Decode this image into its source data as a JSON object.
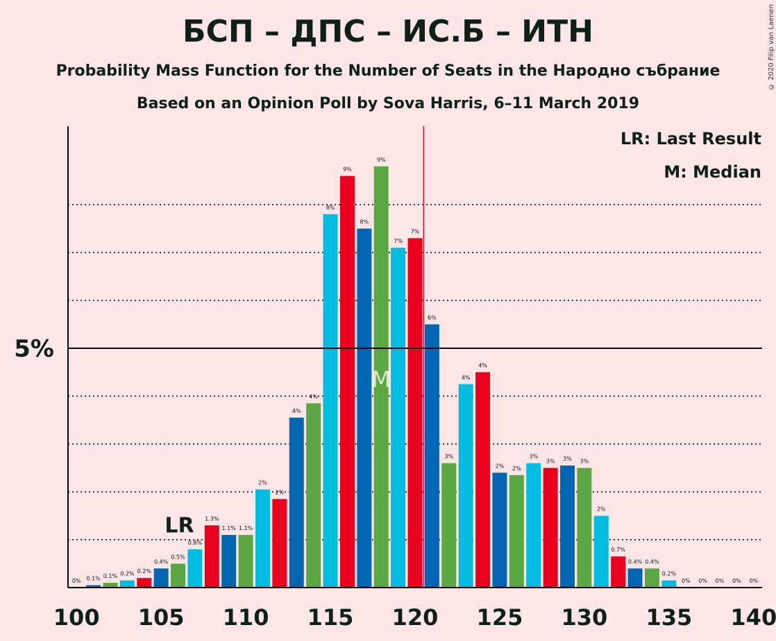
{
  "title": "БСП – ДПС – ИС.Б – ИТН",
  "subtitle": "Probability Mass Function for the Number of Seats in the Народно събрание",
  "source": "Based on an Opinion Poll by Sova Harris, 6–11 March 2019",
  "copyright": "© 2020 Filip van Laenen",
  "legend": {
    "last_result": "LR: Last Result",
    "median": "M: Median"
  },
  "colors": {
    "background": "#FDE6E6",
    "blue": "#0066B2",
    "green": "#5BA744",
    "cyan": "#00BCE0",
    "red": "#E8001E"
  },
  "chart_data": {
    "type": "bar",
    "x": [
      100,
      101,
      102,
      103,
      104,
      105,
      106,
      107,
      108,
      109,
      110,
      111,
      112,
      113,
      114,
      115,
      116,
      117,
      118,
      119,
      120,
      121,
      122,
      123,
      124,
      125,
      126,
      127,
      128,
      129,
      130,
      131,
      132,
      133,
      134,
      135,
      136,
      137,
      138,
      139,
      140
    ],
    "values": [
      0,
      0.05,
      0.1,
      0.15,
      0.2,
      0.4,
      0.5,
      0.8,
      1.3,
      1.1,
      1.1,
      2.05,
      1.85,
      3.55,
      3.85,
      7.8,
      8.6,
      7.5,
      8.8,
      7.1,
      7.3,
      5.5,
      2.6,
      4.25,
      4.5,
      2.4,
      2.35,
      2.6,
      2.5,
      2.55,
      2.5,
      1.5,
      0.65,
      0.4,
      0.4,
      0.15,
      0,
      0,
      0,
      0,
      0
    ],
    "labels": [
      "0%",
      "0.1%",
      "0.1%",
      "0.2%",
      "0.2%",
      "0.4%",
      "0.5%",
      "0.8%",
      "1.3%",
      "1.1%",
      "1.1%",
      "2%",
      "2%",
      "4%",
      "4%",
      "8%",
      "9%",
      "8%",
      "9%",
      "7%",
      "7%",
      "6%",
      "3%",
      "4%",
      "4%",
      "2%",
      "2%",
      "3%",
      "3%",
      "3%",
      "3%",
      "2%",
      "0.7%",
      "0.4%",
      "0.4%",
      "0.2%",
      "0%",
      "0%",
      "0%",
      "0%",
      "0%"
    ],
    "bar_colors": [
      "blue",
      "blue",
      "green",
      "cyan",
      "red",
      "blue",
      "green",
      "cyan",
      "red",
      "blue",
      "green",
      "cyan",
      "red",
      "blue",
      "green",
      "cyan",
      "red",
      "blue",
      "green",
      "cyan",
      "red",
      "blue",
      "green",
      "cyan",
      "red",
      "blue",
      "green",
      "cyan",
      "red",
      "blue",
      "green",
      "cyan",
      "red",
      "blue",
      "green",
      "cyan",
      "red",
      "blue",
      "green",
      "cyan",
      "red"
    ],
    "x_ticks": [
      100,
      105,
      110,
      115,
      120,
      125,
      130,
      135,
      140
    ],
    "y_ticks": [
      {
        "value": 5,
        "label": "5%"
      }
    ],
    "ylim": [
      0,
      9.6
    ],
    "xlim": [
      99.5,
      140.5
    ],
    "gridlines": [
      1,
      2,
      3,
      4,
      6,
      7,
      8
    ],
    "last_result": {
      "seat": 106,
      "label": "LR"
    },
    "median": {
      "seat": 118,
      "label": "M"
    },
    "majority_line": 120.5
  }
}
